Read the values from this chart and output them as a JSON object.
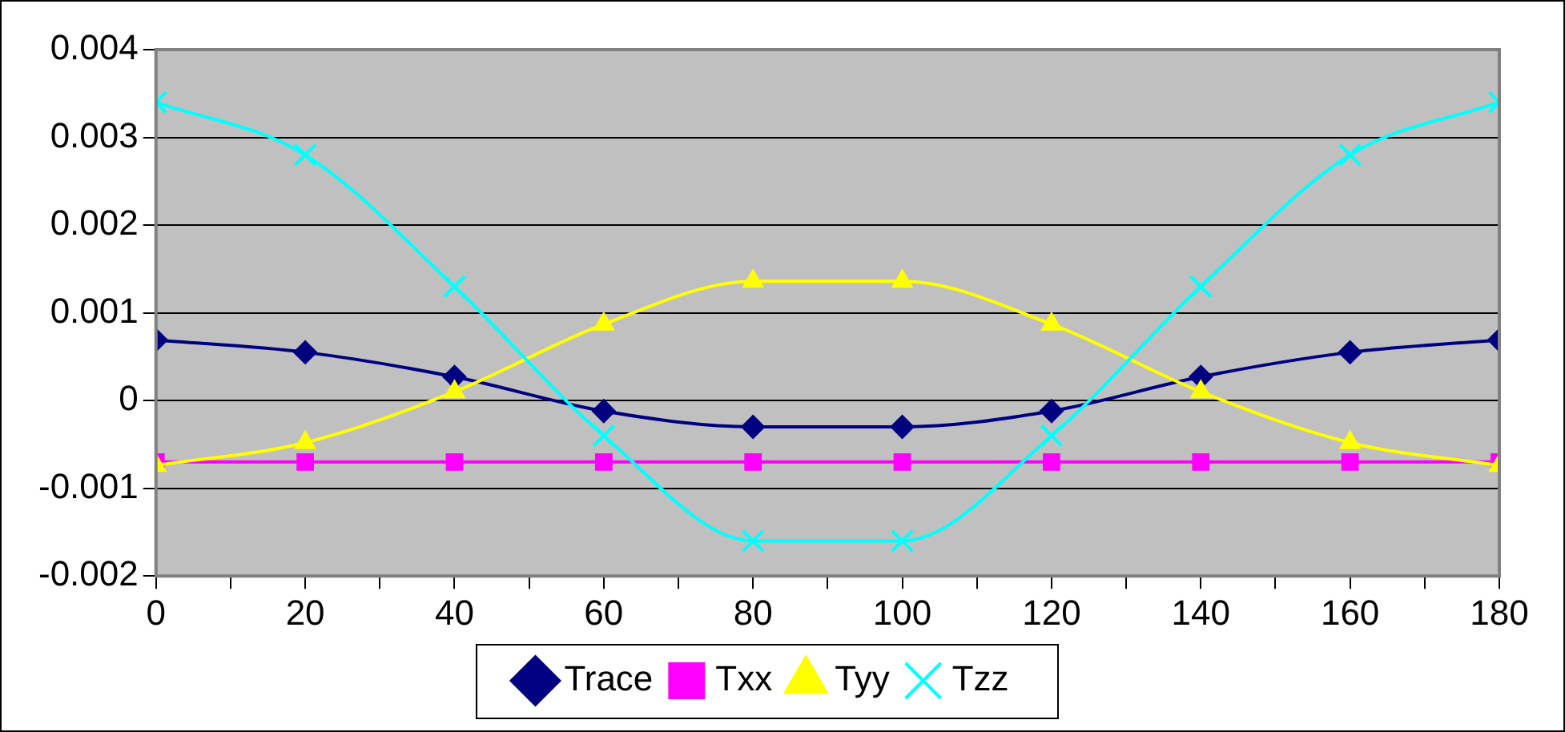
{
  "chart_data": {
    "type": "line",
    "x": [
      0,
      20,
      40,
      60,
      80,
      100,
      120,
      140,
      160,
      180
    ],
    "series": [
      {
        "name": "Trace",
        "color": "#000080",
        "marker": "diamond",
        "values": [
          0.00069,
          0.00055,
          0.00027,
          -0.00012,
          -0.0003,
          -0.0003,
          -0.00012,
          0.00027,
          0.00055,
          0.00069
        ]
      },
      {
        "name": "Txx",
        "color": "#ff00ff",
        "marker": "square",
        "values": [
          -0.0007,
          -0.0007,
          -0.0007,
          -0.0007,
          -0.0007,
          -0.0007,
          -0.0007,
          -0.0007,
          -0.0007,
          -0.0007
        ]
      },
      {
        "name": "Tyy",
        "color": "#ffff00",
        "marker": "triangle",
        "values": [
          -0.00074,
          -0.00048,
          0.0001,
          0.00087,
          0.00136,
          0.00136,
          0.00087,
          0.0001,
          -0.00048,
          -0.00074
        ]
      },
      {
        "name": "Tzz",
        "color": "#00ffff",
        "marker": "cross",
        "values": [
          0.0034,
          0.0028,
          0.0013,
          -0.0004,
          -0.0016,
          -0.0016,
          -0.0004,
          0.0013,
          0.0028,
          0.0034
        ]
      }
    ],
    "xlim": [
      0,
      180
    ],
    "xticks": [
      0,
      {
        "value": 10,
        "label": null
      },
      20,
      {
        "value": 30,
        "label": null
      },
      40,
      {
        "value": 50,
        "label": null
      },
      60,
      {
        "value": 70,
        "label": null
      },
      80,
      {
        "value": 90,
        "label": null
      },
      100,
      {
        "value": 110,
        "label": null
      },
      120,
      {
        "value": 130,
        "label": null
      },
      140,
      {
        "value": 150,
        "label": null
      },
      160,
      {
        "value": 170,
        "label": null
      },
      180
    ],
    "ylim": [
      -0.002,
      0.004
    ],
    "yticks": [
      -0.002,
      -0.001,
      0,
      0.001,
      0.002,
      0.003,
      0.004
    ],
    "grid": "y",
    "legend": "bottom",
    "line_style": "solid"
  }
}
